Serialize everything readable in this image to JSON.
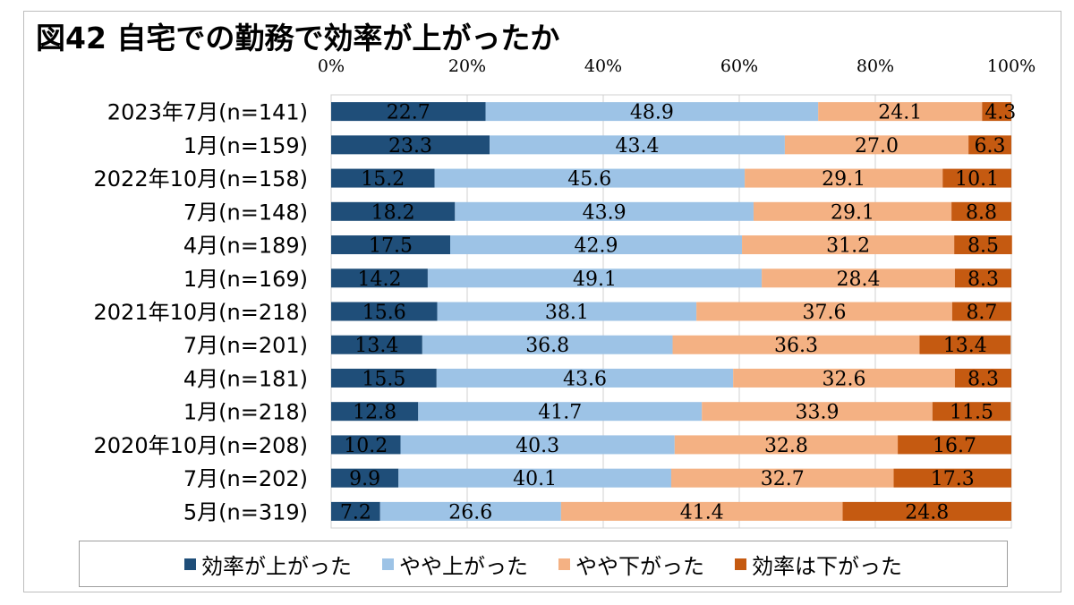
{
  "chart_data": {
    "type": "bar",
    "orientation": "horizontal",
    "stacked": true,
    "title": "図42 自宅での勤務で効率が上がったか",
    "categories": [
      "2023年7月(n=141)",
      "1月(n=159)",
      "2022年10月(n=158)",
      "7月(n=148)",
      "4月(n=189)",
      "1月(n=169)",
      "2021年10月(n=218)",
      "7月(n=201)",
      "4月(n=181)",
      "1月(n=218)",
      "2020年10月(n=208)",
      "7月(n=202)",
      "5月(n=319)"
    ],
    "series": [
      {
        "name": "効率が上がった",
        "color": "#1f4e79",
        "values": [
          22.7,
          23.3,
          15.2,
          18.2,
          17.5,
          14.2,
          15.6,
          13.4,
          15.5,
          12.8,
          10.2,
          9.9,
          7.2
        ]
      },
      {
        "name": "やや上がった",
        "color": "#9dc3e6",
        "values": [
          48.9,
          43.4,
          45.6,
          43.9,
          42.9,
          49.1,
          38.1,
          36.8,
          43.6,
          41.7,
          40.3,
          40.1,
          26.6
        ]
      },
      {
        "name": "やや下がった",
        "color": "#f4b183",
        "values": [
          24.1,
          27.0,
          29.1,
          29.1,
          31.2,
          28.4,
          37.6,
          36.3,
          32.6,
          33.9,
          32.8,
          32.7,
          41.4
        ]
      },
      {
        "name": "効率は下がった",
        "color": "#c55a11",
        "values": [
          4.3,
          6.3,
          10.1,
          8.8,
          8.5,
          8.3,
          8.7,
          13.4,
          8.3,
          11.5,
          16.7,
          17.3,
          24.8
        ]
      }
    ],
    "xlim": [
      0,
      100
    ],
    "xticks": [
      "0%",
      "20%",
      "40%",
      "60%",
      "80%",
      "100%"
    ],
    "grid": true,
    "legend_position": "bottom"
  }
}
